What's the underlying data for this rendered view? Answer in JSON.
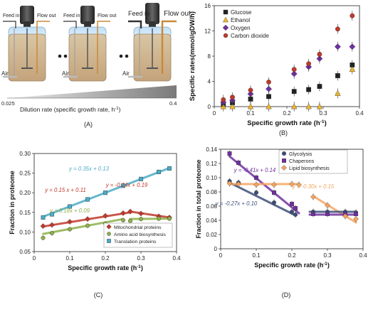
{
  "panel_a": {
    "label": "(A)",
    "feed_in": "Feed in",
    "flow_out": "Flow out",
    "air": "Air",
    "dilution_min": "0.025",
    "dilution_max": "0.4",
    "dilution_label": "Dilution rate (specific growth rate, h",
    "dilution_sup": "-1",
    "dilution_close": ")"
  },
  "chart_data": [
    {
      "id": "B",
      "type": "scatter",
      "panel_label": "(B)",
      "xlabel": "Specific growth rate (h",
      "xlabel_sup": "-1",
      "xlabel_close": ")",
      "ylabel": "Specific rates(mmol/gDW/h)",
      "xlim": [
        0,
        0.4
      ],
      "ylim": [
        0,
        16
      ],
      "xticks": [
        0,
        0.1,
        0.2,
        0.3,
        0.4
      ],
      "xtick_labels": [
        "0",
        "0.1",
        "0.2",
        "0.3",
        "0.4"
      ],
      "yticks": [
        0,
        4,
        8,
        12,
        16
      ],
      "ytick_labels": [
        "0",
        "4",
        "8",
        "12",
        "16"
      ],
      "legend": "top-left",
      "series": [
        {
          "name": "Glucose",
          "marker": "square",
          "color": "#222222",
          "x": [
            0.025,
            0.05,
            0.1,
            0.15,
            0.22,
            0.26,
            0.29,
            0.34,
            0.38
          ],
          "y": [
            0.4,
            0.6,
            1.2,
            1.6,
            2.4,
            2.7,
            3.2,
            4.9,
            6.6
          ]
        },
        {
          "name": "Ethanol",
          "marker": "triangle",
          "color": "#f0b92a",
          "x": [
            0.025,
            0.05,
            0.1,
            0.15,
            0.22,
            0.26,
            0.29,
            0.34,
            0.38
          ],
          "y": [
            0,
            0,
            0,
            0,
            0,
            0,
            0,
            2.1,
            5.9
          ]
        },
        {
          "name": "Oxygen",
          "marker": "diamond",
          "color": "#7030a0",
          "x": [
            0.025,
            0.05,
            0.1,
            0.15,
            0.22,
            0.26,
            0.29,
            0.34,
            0.38
          ],
          "y": [
            0.7,
            1.0,
            2.0,
            2.8,
            5.2,
            6.3,
            7.6,
            9.5,
            9.5
          ]
        },
        {
          "name": "Carbon dioxide",
          "marker": "circle",
          "color": "#c0392b",
          "x": [
            0.025,
            0.05,
            0.1,
            0.15,
            0.22,
            0.26,
            0.29,
            0.34,
            0.38
          ],
          "y": [
            1.1,
            1.5,
            2.6,
            3.9,
            5.9,
            6.8,
            8.3,
            12.3,
            14.4
          ]
        }
      ]
    },
    {
      "id": "C",
      "type": "scatter",
      "panel_label": "(C)",
      "xlabel": "Specific growth rate (h",
      "xlabel_sup": "-1",
      "xlabel_close": ")",
      "ylabel": "Fraction in proteome",
      "xlim": [
        0,
        0.4
      ],
      "ylim": [
        0.05,
        0.3
      ],
      "xticks": [
        0,
        0.1,
        0.2,
        0.3,
        0.4
      ],
      "xtick_labels": [
        "0",
        "0.1",
        "0.2",
        "0.3",
        "0.4"
      ],
      "yticks": [
        0.05,
        0.1,
        0.15,
        0.2,
        0.25,
        0.3
      ],
      "ytick_labels": [
        "0.05",
        "0.10",
        "0.15",
        "0.20",
        "0.25",
        "0.30"
      ],
      "legend": "bottom-right",
      "series": [
        {
          "name": "Mitochondrial proteins",
          "marker": "diamond",
          "color": "#c0392b",
          "x": [
            0.025,
            0.05,
            0.1,
            0.15,
            0.2,
            0.25,
            0.27,
            0.3,
            0.35,
            0.38
          ],
          "y": [
            0.115,
            0.118,
            0.126,
            0.133,
            0.141,
            0.148,
            0.152,
            0.147,
            0.14,
            0.137
          ]
        },
        {
          "name": "Amino acid biosynthesis",
          "marker": "circle",
          "color": "#8db04a",
          "x": [
            0.025,
            0.05,
            0.1,
            0.15,
            0.2,
            0.25,
            0.27,
            0.3,
            0.35,
            0.38
          ],
          "y": [
            0.085,
            0.097,
            0.107,
            0.116,
            0.121,
            0.13,
            0.128,
            0.133,
            0.134,
            0.134
          ]
        },
        {
          "name": "Translation proteins",
          "marker": "square",
          "color": "#4bacc6",
          "x": [
            0.025,
            0.05,
            0.1,
            0.15,
            0.2,
            0.25,
            0.3,
            0.35,
            0.38
          ],
          "y": [
            0.137,
            0.145,
            0.165,
            0.183,
            0.2,
            0.218,
            0.235,
            0.253,
            0.262
          ]
        }
      ],
      "fits": [
        {
          "label": "y = 0.35x + 0.13",
          "color": "#4bacc6",
          "x": [
            0.025,
            0.38
          ],
          "y": [
            0.139,
            0.263
          ]
        },
        {
          "label": "y = 0.15 x + 0.11",
          "color": "#c0392b",
          "x": [
            0.025,
            0.27
          ],
          "y": [
            0.114,
            0.15
          ]
        },
        {
          "label": "y = -0.14x + 0.19",
          "color": "#c0392b",
          "x": [
            0.27,
            0.38
          ],
          "y": [
            0.152,
            0.137
          ]
        },
        {
          "label": "y = 0.18x + 0.09",
          "color": "#8db04a",
          "x": [
            0.025,
            0.25
          ],
          "y": [
            0.095,
            0.133
          ]
        },
        {
          "label": "",
          "color": "#8db04a",
          "x": [
            0.27,
            0.38
          ],
          "y": [
            0.133,
            0.134
          ]
        }
      ]
    },
    {
      "id": "D",
      "type": "scatter",
      "panel_label": "(D)",
      "xlabel": "Specific growth rate (h",
      "xlabel_sup": "-1",
      "xlabel_close": ")",
      "ylabel": "Fraction in total proteome",
      "xlim": [
        0,
        0.4
      ],
      "ylim": [
        0,
        0.14
      ],
      "xticks": [
        0,
        0.1,
        0.2,
        0.3,
        0.4
      ],
      "xtick_labels": [
        "0",
        "0.1",
        "0.2",
        "0.3",
        "0.4"
      ],
      "yticks": [
        0,
        0.02,
        0.04,
        0.06,
        0.08,
        0.1,
        0.12,
        0.14
      ],
      "ytick_labels": [
        "0",
        "0.02",
        "0.04",
        "0.06",
        "0.08",
        "0.10",
        "0.12",
        "0.14"
      ],
      "legend": "top-right",
      "series": [
        {
          "name": "Glycolysis",
          "marker": "circle",
          "color": "#3d4f7a",
          "x": [
            0.025,
            0.05,
            0.1,
            0.15,
            0.2,
            0.21,
            0.26,
            0.3,
            0.35,
            0.38
          ],
          "y": [
            0.095,
            0.093,
            0.079,
            0.065,
            0.052,
            0.048,
            0.052,
            0.052,
            0.052,
            0.051
          ]
        },
        {
          "name": "Chaperons",
          "marker": "square",
          "color": "#7030a0",
          "x": [
            0.025,
            0.05,
            0.1,
            0.15,
            0.2,
            0.21,
            0.26,
            0.3,
            0.35,
            0.38
          ],
          "y": [
            0.134,
            0.121,
            0.1,
            0.079,
            0.063,
            0.057,
            0.049,
            0.049,
            0.049,
            0.049
          ]
        },
        {
          "name": "Lipid biosynthesis",
          "marker": "diamond",
          "color": "#f4a460",
          "x": [
            0.025,
            0.05,
            0.1,
            0.15,
            0.2,
            0.22,
            0.26,
            0.3,
            0.35,
            0.38
          ],
          "y": [
            0.092,
            0.091,
            0.09,
            0.09,
            0.091,
            0.09,
            0.073,
            0.061,
            0.046,
            0.042
          ]
        }
      ],
      "fits": [
        {
          "label": "y = -0.41x + 0.14",
          "color": "#7030a0",
          "x": [
            0.025,
            0.22
          ],
          "y": [
            0.13,
            0.05
          ]
        },
        {
          "label": "y = -0.27x + 0.10",
          "color": "#3d4f7a",
          "x": [
            0.025,
            0.21
          ],
          "y": [
            0.093,
            0.047
          ]
        },
        {
          "label": "",
          "color": "#f4a460",
          "x": [
            0.025,
            0.22
          ],
          "y": [
            0.091,
            0.091
          ]
        },
        {
          "label": "y = -0.30x + 0.15",
          "color": "#f4a460",
          "x": [
            0.26,
            0.38
          ],
          "y": [
            0.074,
            0.037
          ]
        },
        {
          "label": "",
          "color": "#3d4f7a",
          "x": [
            0.25,
            0.38
          ],
          "y": [
            0.052,
            0.052
          ]
        },
        {
          "label": "",
          "color": "#7030a0",
          "x": [
            0.25,
            0.38
          ],
          "y": [
            0.048,
            0.048
          ]
        }
      ]
    }
  ]
}
